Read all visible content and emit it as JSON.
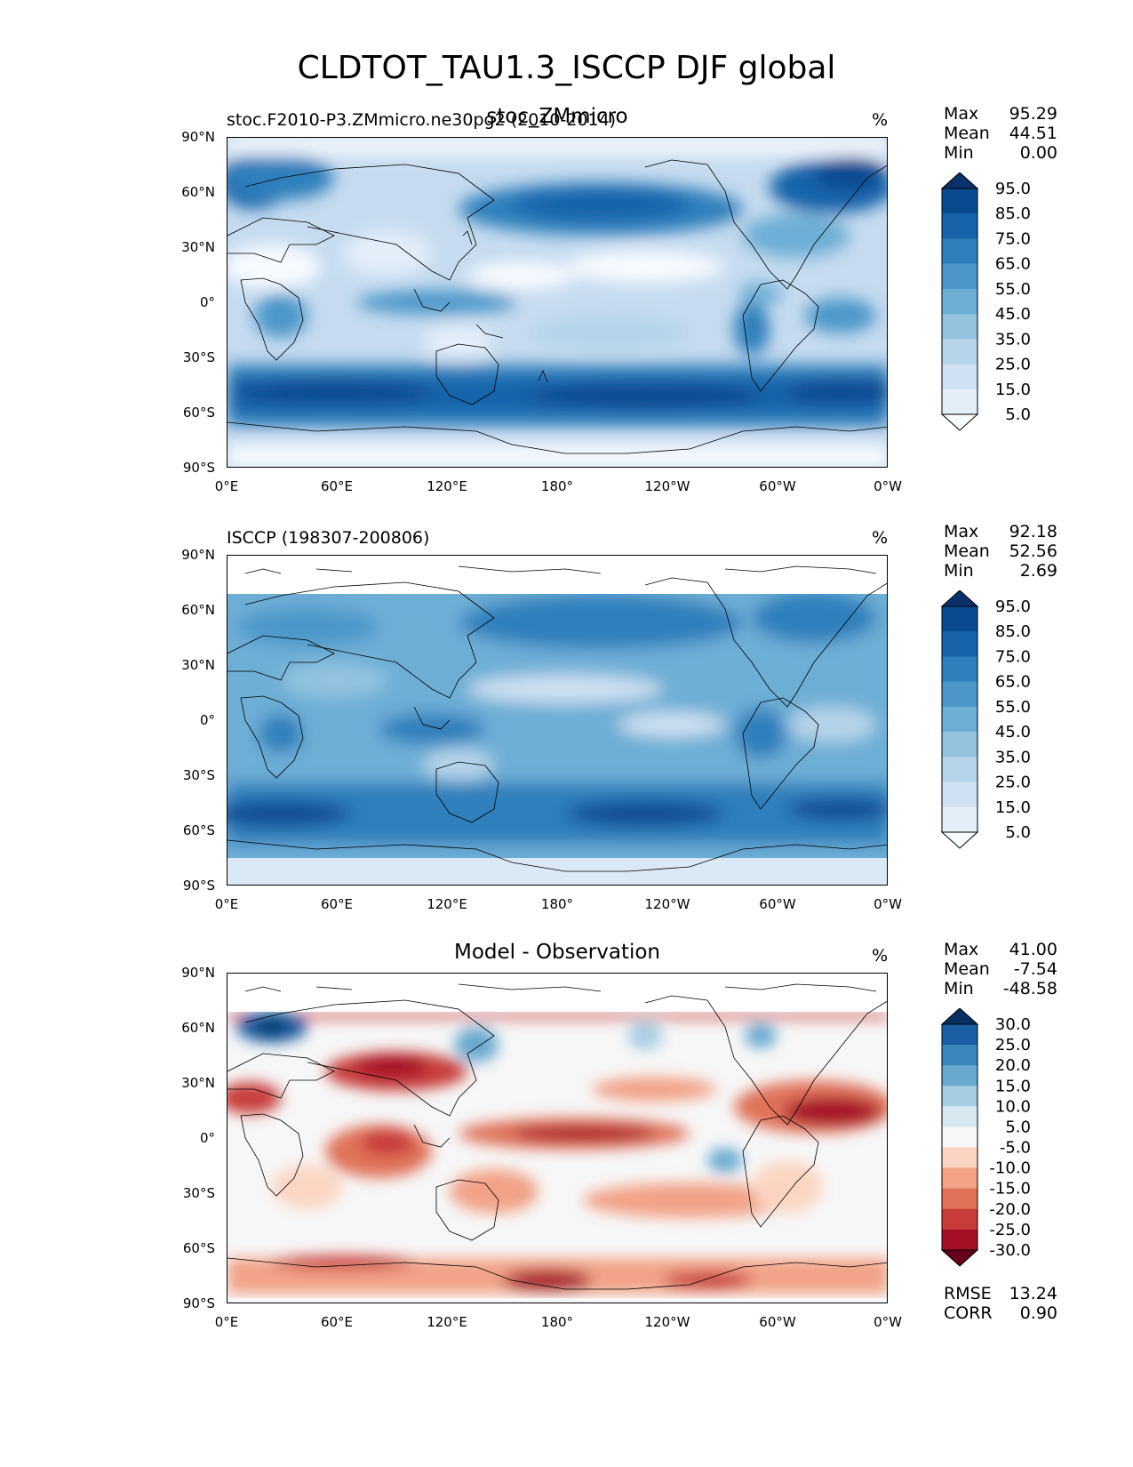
{
  "title": "CLDTOT_TAU1.3_ISCCP DJF global",
  "lat_ticks": [
    "90°N",
    "60°N",
    "30°N",
    "0°",
    "30°S",
    "60°S",
    "90°S"
  ],
  "lon_ticks": [
    "0°E",
    "60°E",
    "120°E",
    "180°",
    "120°W",
    "60°W",
    "0°W"
  ],
  "panels": [
    {
      "left_title": "stoc.F2010-P3.ZMmicro.ne30pg2 (2010-2014)",
      "center_title": "stoc_ZMmicro",
      "units": "%",
      "stats": [
        {
          "label": "Max",
          "value": "95.29"
        },
        {
          "label": "Mean",
          "value": "44.51"
        },
        {
          "label": "Min",
          "value": "0.00"
        }
      ],
      "colorbar": {
        "colors": [
          "#f7fbff",
          "#e3eef9",
          "#cfe1f2",
          "#b5d4e9",
          "#93c3df",
          "#6daed5",
          "#4b97c9",
          "#2f7fbc",
          "#1864aa",
          "#0a4a90",
          "#08306b"
        ],
        "labels": [
          "5.0",
          "15.0",
          "25.0",
          "35.0",
          "45.0",
          "55.0",
          "65.0",
          "75.0",
          "85.0",
          "95.0"
        ]
      }
    },
    {
      "left_title": "ISCCP (198307-200806)",
      "center_title": "",
      "units": "%",
      "stats": [
        {
          "label": "Max",
          "value": "92.18"
        },
        {
          "label": "Mean",
          "value": "52.56"
        },
        {
          "label": "Min",
          "value": "2.69"
        }
      ],
      "colorbar": {
        "colors": [
          "#f7fbff",
          "#e3eef9",
          "#cfe1f2",
          "#b5d4e9",
          "#93c3df",
          "#6daed5",
          "#4b97c9",
          "#2f7fbc",
          "#1864aa",
          "#0a4a90",
          "#08306b"
        ],
        "labels": [
          "5.0",
          "15.0",
          "25.0",
          "35.0",
          "45.0",
          "55.0",
          "65.0",
          "75.0",
          "85.0",
          "95.0"
        ]
      }
    },
    {
      "left_title": "",
      "center_title": "Model - Observation",
      "units": "%",
      "stats": [
        {
          "label": "Max",
          "value": "41.00"
        },
        {
          "label": "Mean",
          "value": "-7.54"
        },
        {
          "label": "Min",
          "value": "-48.58"
        }
      ],
      "extra_stats": [
        {
          "label": "RMSE",
          "value": "13.24"
        },
        {
          "label": "CORR",
          "value": "0.90"
        }
      ],
      "colorbar": {
        "colors": [
          "#67001f",
          "#a50f26",
          "#c83d3a",
          "#e0725a",
          "#f2a287",
          "#fbd5c2",
          "#f7f7f7",
          "#d7e8f1",
          "#a7cde3",
          "#68a9cf",
          "#3a86bd",
          "#1a5fa3",
          "#053061"
        ],
        "labels": [
          "-30.0",
          "-25.0",
          "-20.0",
          "-15.0",
          "-10.0",
          "-5.0",
          "5.0",
          "10.0",
          "15.0",
          "20.0",
          "25.0",
          "30.0"
        ]
      }
    }
  ]
}
